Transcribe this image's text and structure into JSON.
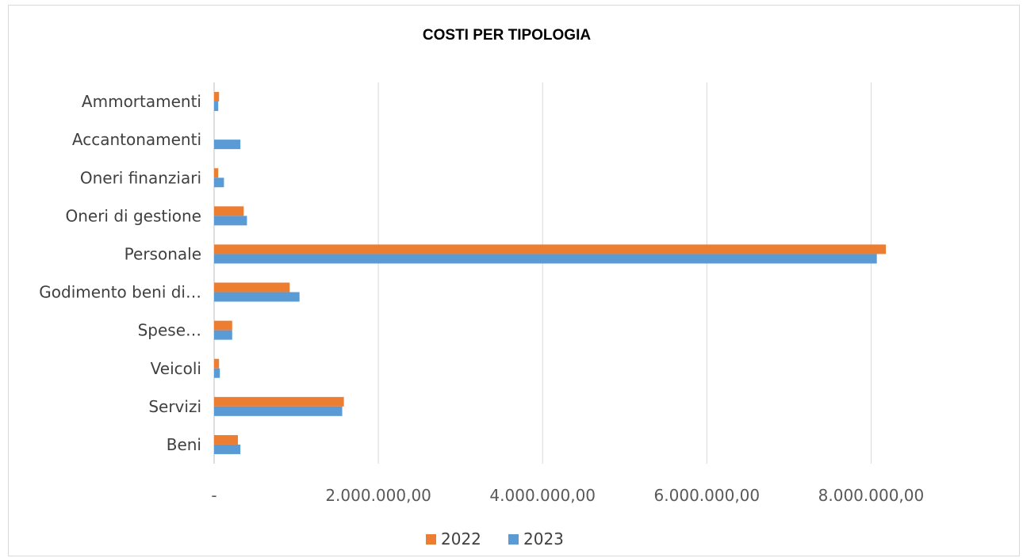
{
  "chart_data": {
    "type": "bar",
    "orientation": "horizontal",
    "title": "COSTI PER TIPOLOGIA",
    "xlabel": "",
    "ylabel": "",
    "categories": [
      "Beni",
      "Servizi",
      "Veicoli",
      "Spese…",
      "Godimento beni di…",
      "Personale",
      "Oneri di gestione",
      "Oneri finanziari",
      "Accantonamenti",
      "Ammortamenti"
    ],
    "series": [
      {
        "name": "2022",
        "color": "#ED7D31",
        "values": [
          290000,
          1580000,
          60000,
          220000,
          920000,
          8180000,
          360000,
          50000,
          0,
          60000
        ]
      },
      {
        "name": "2023",
        "color": "#5B9BD5",
        "values": [
          320000,
          1560000,
          70000,
          220000,
          1040000,
          8070000,
          400000,
          120000,
          320000,
          50000
        ]
      }
    ],
    "xlim": [
      0,
      9000000
    ],
    "x_ticks": [
      0,
      2000000,
      4000000,
      6000000,
      8000000
    ],
    "x_tick_labels": [
      "-",
      "2.000.000,00",
      "4.000.000,00",
      "6.000.000,00",
      "8.000.000,00"
    ],
    "grid": true,
    "legend_position": "bottom"
  }
}
